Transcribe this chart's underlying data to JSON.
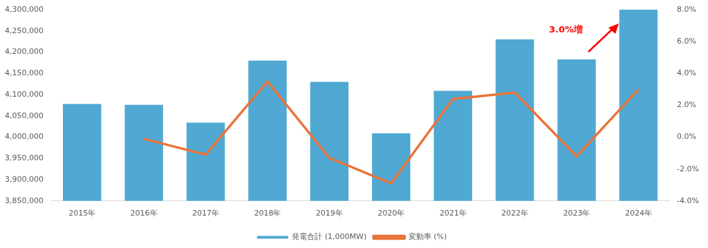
{
  "chart_data": {
    "type": "bar",
    "categories": [
      "2015年",
      "2016年",
      "2017年",
      "2018年",
      "2019年",
      "2020年",
      "2021年",
      "2022年",
      "2023年",
      "2024年"
    ],
    "series": [
      {
        "name": "発電合計 (1,000MW)",
        "color": "#4fa9d2",
        "values": [
          4078000,
          4076000,
          4034000,
          4180000,
          4130000,
          4009000,
          4109000,
          4230000,
          4183000,
          4300000
        ]
      },
      {
        "name": "変動率 (%)",
        "type": "line",
        "axis": "y2",
        "color": "#e8743b",
        "values": [
          null,
          -0.1,
          -1.1,
          3.5,
          -1.3,
          -2.9,
          2.4,
          2.8,
          -1.2,
          3.0
        ]
      }
    ],
    "ylim": [
      3850000,
      4300000
    ],
    "yticks": [
      {
        "value": 3850000,
        "label": "3,850,000"
      },
      {
        "value": 3900000,
        "label": "3,900,000"
      },
      {
        "value": 3950000,
        "label": "3,950,000"
      },
      {
        "value": 4000000,
        "label": "4,000,000"
      },
      {
        "value": 4050000,
        "label": "4,050,000"
      },
      {
        "value": 4100000,
        "label": "4,100,000"
      },
      {
        "value": 4150000,
        "label": "4,150,000"
      },
      {
        "value": 4200000,
        "label": "4,200,000"
      },
      {
        "value": 4250000,
        "label": "4,250,000"
      },
      {
        "value": 4300000,
        "label": "4,300,000"
      }
    ],
    "y2lim": [
      -4,
      8
    ],
    "y2ticks": [
      {
        "value": -4,
        "label": "-4.0%"
      },
      {
        "value": -2,
        "label": "-2.0%"
      },
      {
        "value": 0,
        "label": "0.0%"
      },
      {
        "value": 2,
        "label": "2.0%"
      },
      {
        "value": 4,
        "label": "4.0%"
      },
      {
        "value": 6,
        "label": "6.0%"
      },
      {
        "value": 8,
        "label": "8.0%"
      }
    ],
    "annotations": [
      "3.0%増"
    ],
    "grid": false,
    "legend": "bottom",
    "marker": "none",
    "line_style": "solid"
  }
}
